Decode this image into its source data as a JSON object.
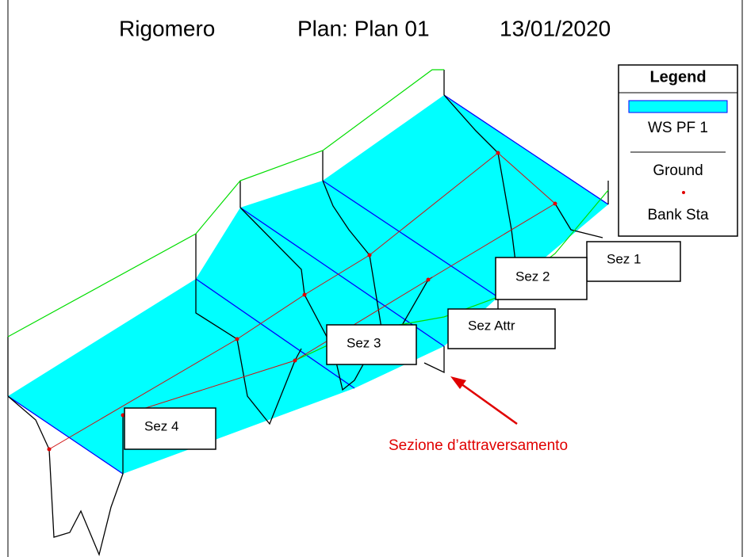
{
  "title": {
    "project": "Rigomero",
    "plan": "Plan: Plan 01",
    "date": "13/01/2020"
  },
  "legend": {
    "title": "Legend",
    "items": [
      "WS PF 1",
      "Ground",
      "Bank Sta"
    ]
  },
  "sections": [
    "Sez 1",
    "Sez 2",
    "Sez Attr",
    "Sez 3",
    "Sez 4"
  ],
  "annotation": "Sezione d’attraversamento"
}
